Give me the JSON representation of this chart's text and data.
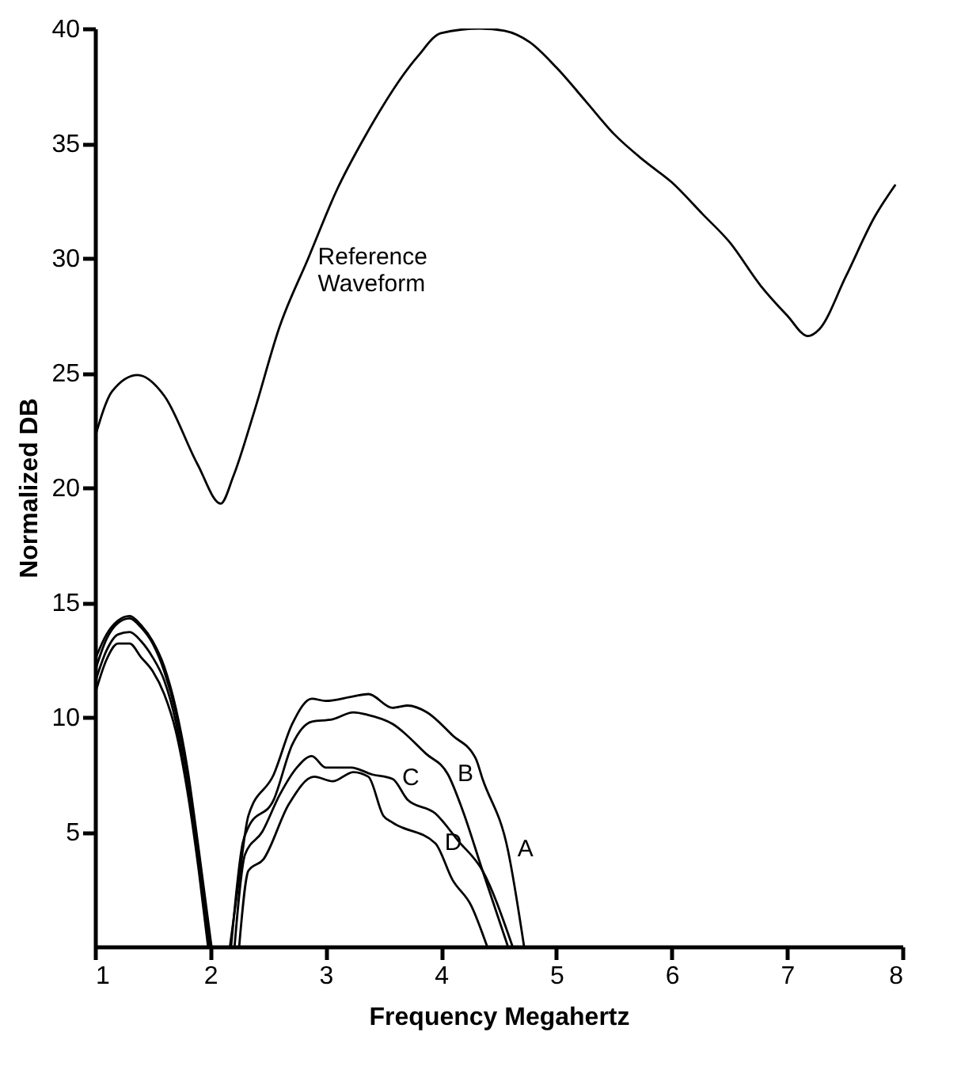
{
  "chart_data": {
    "type": "line",
    "xlabel": "Frequency  Megahertz",
    "ylabel": "Normalized  DB",
    "xlim": [
      1,
      8
    ],
    "xticks": [
      1,
      2,
      3,
      4,
      5,
      6,
      7,
      8
    ],
    "ylim": [
      0,
      40
    ],
    "yticks": [
      5,
      10,
      15,
      20,
      25,
      30,
      35,
      40
    ],
    "grid": false,
    "series": [
      {
        "color": "#000000",
        "x": [
          1,
          1.15,
          1.37,
          1.6,
          1.89,
          2.09,
          2.2,
          2.38,
          2.6,
          2.85,
          3.1,
          3.33,
          3.8,
          4.0,
          4.34,
          4.55,
          4.77,
          5.0,
          5.26,
          5.5,
          5.77,
          6.0,
          6.27,
          6.5,
          6.77,
          7.0,
          7.18,
          7.28,
          7.51,
          7.76,
          7.94
        ],
        "values": [
          22.2,
          24.2,
          24.9,
          24.0,
          21.0,
          19.3,
          20.5,
          23.3,
          27.0,
          30.0,
          33.0,
          35.2,
          38.8,
          39.8,
          40.0,
          39.9,
          39.4,
          38.3,
          36.8,
          35.4,
          34.2,
          33.3,
          31.9,
          30.7,
          28.8,
          27.5,
          26.6,
          26.9,
          29.2,
          31.8,
          33.2
        ]
      },
      {
        "color": "#000000",
        "x": [
          1,
          1.1,
          1.2,
          1.3,
          1.4,
          1.5,
          1.6,
          1.7,
          1.8,
          1.9,
          2.01
        ],
        "values": [
          12.5,
          13.6,
          14.2,
          14.4,
          14.0,
          13.3,
          12.2,
          10.4,
          7.8,
          4.2,
          0
        ]
      },
      {
        "color": "#000000",
        "x": [
          1,
          1.1,
          1.2,
          1.3,
          1.4,
          1.5,
          1.6,
          1.7,
          1.8,
          1.9,
          2.0
        ],
        "values": [
          12.0,
          13.4,
          14.1,
          14.3,
          13.9,
          13.2,
          12.0,
          10.2,
          7.5,
          4.0,
          0
        ]
      },
      {
        "color": "#000000",
        "x": [
          1,
          1.1,
          1.2,
          1.3,
          1.4,
          1.5,
          1.6,
          1.7,
          1.8,
          1.9,
          1.99
        ],
        "values": [
          11.5,
          12.9,
          13.6,
          13.7,
          13.3,
          12.6,
          11.6,
          9.8,
          7.0,
          3.6,
          0
        ]
      },
      {
        "color": "#000000",
        "x": [
          1,
          1.1,
          1.2,
          1.3,
          1.4,
          1.5,
          1.6,
          1.7,
          1.8,
          1.9,
          1.98
        ],
        "values": [
          11.0,
          12.5,
          13.2,
          13.2,
          12.6,
          12.0,
          11.0,
          9.4,
          6.8,
          3.3,
          0
        ]
      },
      {
        "color": "#000000",
        "x": [
          2.17,
          2.25,
          2.33,
          2.55,
          2.71,
          2.88,
          3.0,
          3.24,
          3.37,
          3.58,
          3.71,
          3.88,
          4.1,
          4.3,
          4.36,
          4.58,
          4.72
        ],
        "values": [
          0,
          3.0,
          5.7,
          7.5,
          9.7,
          10.8,
          10.7,
          10.9,
          11.0,
          10.4,
          10.5,
          10.2,
          9.2,
          8.2,
          7.3,
          4.2,
          0
        ]
      },
      {
        "color": "#000000",
        "x": [
          2.18,
          2.28,
          2.33,
          2.55,
          2.71,
          2.88,
          3.06,
          3.24,
          3.36,
          3.58,
          3.87,
          4.06,
          4.19,
          4.36,
          4.58
        ],
        "values": [
          0,
          4.5,
          5.2,
          6.4,
          8.8,
          9.8,
          9.9,
          10.2,
          10.1,
          9.7,
          8.4,
          7.5,
          5.9,
          3.3,
          0
        ]
      },
      {
        "color": "#000000",
        "x": [
          2.21,
          2.3,
          2.45,
          2.6,
          2.75,
          2.88,
          3.0,
          3.22,
          3.4,
          3.58,
          3.71,
          3.95,
          4.15,
          4.36,
          4.62
        ],
        "values": [
          0,
          4.0,
          5.0,
          6.6,
          7.8,
          8.3,
          7.8,
          7.8,
          7.5,
          7.3,
          6.4,
          5.8,
          4.6,
          3.3,
          0
        ]
      },
      {
        "color": "#000000",
        "x": [
          2.25,
          2.33,
          2.46,
          2.68,
          2.9,
          3.06,
          3.24,
          3.37,
          3.5,
          3.58,
          3.95,
          4.1,
          4.26,
          4.4
        ],
        "values": [
          0,
          3.3,
          3.8,
          6.2,
          7.4,
          7.2,
          7.6,
          7.4,
          5.7,
          5.4,
          4.5,
          2.9,
          1.8,
          0
        ]
      }
    ],
    "annotations": [
      {
        "text": "Reference Waveform",
        "x": 2.85,
        "y": 30.0
      },
      {
        "text": "A",
        "x": 4.58,
        "y": 4.2
      },
      {
        "text": "B",
        "x": 4.06,
        "y": 7.5
      },
      {
        "text": "C",
        "x": 3.58,
        "y": 7.3
      },
      {
        "text": "D",
        "x": 3.95,
        "y": 4.5
      }
    ]
  }
}
